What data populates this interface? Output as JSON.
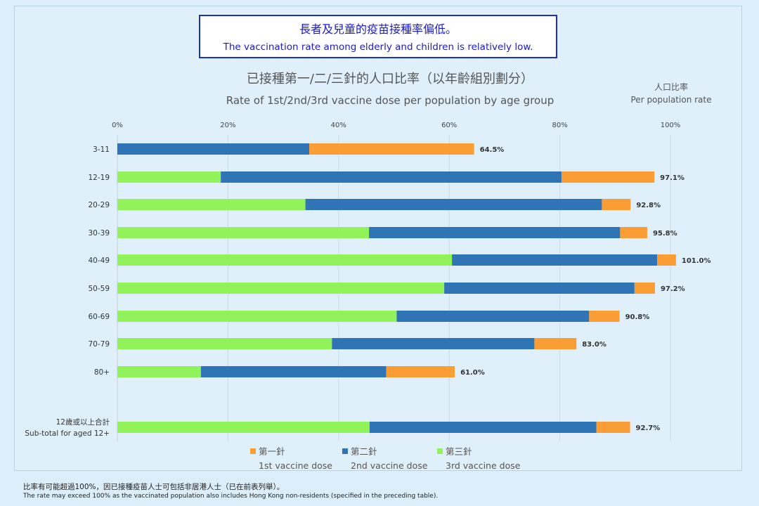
{
  "headline": {
    "zh": "長者及兒童的疫苗接種率偏低。",
    "en": "The vaccination rate among elderly and children is relatively low."
  },
  "chart_data": {
    "type": "bar",
    "orientation": "horizontal",
    "stacked": true,
    "title": "已接種第一/二/三針的人口比率（以年齡組別劃分）",
    "subtitle": "Rate of 1st/2nd/3rd vaccine dose per population by age group",
    "unit_label_zh": "人口比率",
    "unit_label_en": "Per population rate",
    "xlim": [
      0,
      100
    ],
    "x_ticks": [
      "0%",
      "20%",
      "40%",
      "60%",
      "80%",
      "100%"
    ],
    "grid": true,
    "legend_placement": "bottom",
    "categories": [
      "3-11",
      "12-19",
      "20-29",
      "30-39",
      "40-49",
      "50-59",
      "60-69",
      "70-79",
      "80+",
      "12歲或以上合計|Sub-total for aged 12+"
    ],
    "series": [
      {
        "name": "第三針",
        "name_en": "3rd vaccine dose",
        "color": "#92f25a",
        "values": [
          0,
          18.7,
          34.0,
          45.5,
          60.5,
          59.1,
          50.5,
          38.8,
          15.1,
          45.6
        ]
      },
      {
        "name": "第二針",
        "name_en": "2nd vaccine dose",
        "color": "#2f75b5",
        "values": [
          34.7,
          61.6,
          53.6,
          45.4,
          37.1,
          34.4,
          34.8,
          36.6,
          33.5,
          41.0
        ]
      },
      {
        "name": "第一針",
        "name_en": "1st vaccine dose",
        "color": "#fb9d35",
        "values": [
          29.8,
          16.8,
          5.2,
          4.9,
          3.4,
          3.7,
          5.5,
          7.6,
          12.4,
          6.1
        ]
      }
    ],
    "totals": [
      64.5,
      97.1,
      92.8,
      95.8,
      101.0,
      97.2,
      90.8,
      83.0,
      61.0,
      92.7
    ],
    "total_labels": [
      "64.5%",
      "97.1%",
      "92.8%",
      "95.8%",
      "101.0%",
      "97.2%",
      "90.8%",
      "83.0%",
      "61.0%",
      "92.7%"
    ]
  },
  "legend_order": [
    2,
    1,
    0
  ],
  "footnote": {
    "zh": "比率有可能超過100%，因已接種疫苗人士可包括非居港人士（已在前表列舉）。",
    "en": "The rate may exceed 100% as the vaccinated population also includes Hong Kong non-residents (specified in the preceding table)."
  }
}
